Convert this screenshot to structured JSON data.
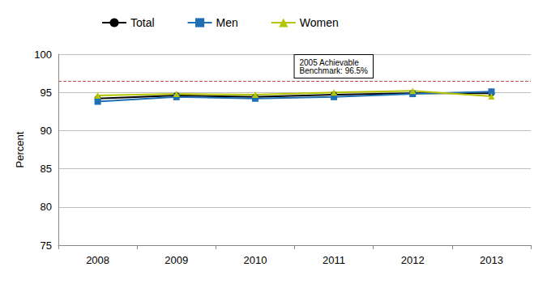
{
  "chart_data": {
    "type": "line",
    "y_label": "Percent",
    "categories": [
      "2008",
      "2009",
      "2010",
      "2011",
      "2012",
      "2013"
    ],
    "series": [
      {
        "name": "Total",
        "color": "#000000",
        "marker": "circle",
        "values": [
          94.2,
          94.6,
          94.4,
          94.7,
          94.9,
          94.9
        ]
      },
      {
        "name": "Men",
        "color": "#1f6fb5",
        "marker": "square",
        "values": [
          93.8,
          94.4,
          94.2,
          94.4,
          94.8,
          95.1
        ]
      },
      {
        "name": "Women",
        "color": "#b5c400",
        "marker": "triangle",
        "values": [
          94.6,
          94.8,
          94.7,
          95.0,
          95.2,
          94.5
        ]
      }
    ],
    "benchmark": {
      "label": "2005 Achievable\nBenchmark: 96.5%",
      "value": 96.5,
      "color": "#c0504d",
      "line_style": "dashed"
    },
    "ylim": [
      75,
      100
    ],
    "yticks": [
      75,
      80,
      85,
      90,
      95,
      100
    ],
    "grid": true,
    "legend": "top"
  }
}
